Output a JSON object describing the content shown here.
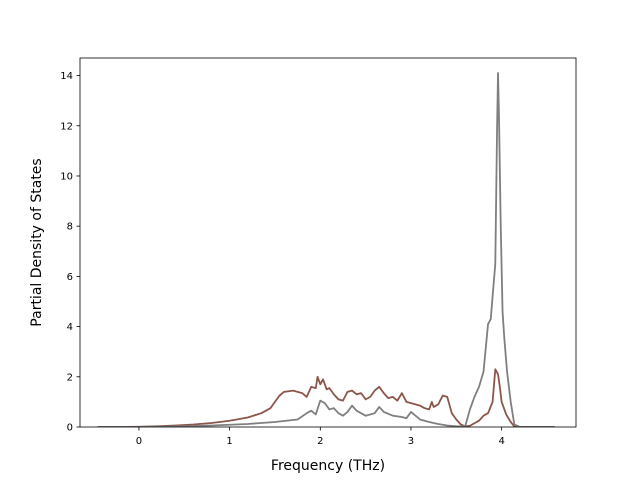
{
  "chart_data": {
    "type": "line",
    "title": "",
    "xlabel": "Frequency (THz)",
    "ylabel": "Partial Density of States",
    "xlim": [
      -0.65,
      4.82
    ],
    "ylim": [
      0,
      14.7
    ],
    "xticks": [
      0,
      1,
      2,
      3,
      4
    ],
    "yticks": [
      0,
      2,
      4,
      6,
      8,
      10,
      12,
      14
    ],
    "grid": false,
    "legend": "none",
    "series": [
      {
        "color": "#8c564b",
        "x": [
          -0.45,
          -0.2,
          0.0,
          0.2,
          0.4,
          0.6,
          0.8,
          1.0,
          1.2,
          1.35,
          1.45,
          1.5,
          1.55,
          1.6,
          1.7,
          1.8,
          1.85,
          1.9,
          1.95,
          1.97,
          2.0,
          2.03,
          2.07,
          2.1,
          2.15,
          2.2,
          2.25,
          2.3,
          2.35,
          2.4,
          2.45,
          2.5,
          2.55,
          2.6,
          2.65,
          2.7,
          2.75,
          2.8,
          2.85,
          2.9,
          2.95,
          3.0,
          3.05,
          3.1,
          3.15,
          3.2,
          3.23,
          3.25,
          3.3,
          3.35,
          3.4,
          3.45,
          3.5,
          3.55,
          3.6,
          3.65,
          3.7,
          3.75,
          3.8,
          3.85,
          3.9,
          3.93,
          3.96,
          3.98,
          4.0,
          4.02,
          4.05,
          4.1,
          4.14,
          4.2,
          4.4,
          4.58
        ],
        "y": [
          0,
          0,
          0.01,
          0.03,
          0.06,
          0.1,
          0.16,
          0.25,
          0.38,
          0.55,
          0.75,
          1.0,
          1.25,
          1.4,
          1.45,
          1.35,
          1.2,
          1.6,
          1.55,
          2.0,
          1.7,
          1.9,
          1.5,
          1.55,
          1.3,
          1.1,
          1.05,
          1.4,
          1.45,
          1.3,
          1.35,
          1.1,
          1.2,
          1.45,
          1.6,
          1.35,
          1.15,
          1.2,
          1.05,
          1.35,
          1.0,
          0.95,
          0.9,
          0.85,
          0.75,
          0.7,
          1.0,
          0.8,
          0.9,
          1.25,
          1.2,
          0.55,
          0.3,
          0.1,
          0.02,
          0.05,
          0.15,
          0.25,
          0.45,
          0.55,
          1.0,
          2.3,
          2.1,
          1.6,
          1.0,
          0.8,
          0.5,
          0.2,
          0.02,
          0,
          0,
          0
        ]
      },
      {
        "color": "#7f7f7f",
        "x": [
          -0.45,
          0.0,
          0.4,
          0.8,
          1.2,
          1.5,
          1.75,
          1.85,
          1.9,
          1.95,
          2.0,
          2.05,
          2.1,
          2.15,
          2.2,
          2.25,
          2.3,
          2.35,
          2.4,
          2.5,
          2.6,
          2.65,
          2.7,
          2.8,
          2.9,
          2.95,
          3.0,
          3.05,
          3.1,
          3.2,
          3.3,
          3.4,
          3.5,
          3.55,
          3.6,
          3.65,
          3.7,
          3.75,
          3.8,
          3.85,
          3.88,
          3.9,
          3.93,
          3.95,
          3.96,
          3.97,
          3.99,
          4.01,
          4.03,
          4.06,
          4.1,
          4.14,
          4.2,
          4.4,
          4.58
        ],
        "y": [
          0,
          0,
          0.02,
          0.06,
          0.12,
          0.2,
          0.3,
          0.55,
          0.65,
          0.5,
          1.05,
          0.95,
          0.7,
          0.75,
          0.55,
          0.45,
          0.6,
          0.85,
          0.65,
          0.45,
          0.55,
          0.8,
          0.6,
          0.45,
          0.4,
          0.35,
          0.6,
          0.45,
          0.3,
          0.2,
          0.12,
          0.06,
          0.03,
          0.02,
          0.05,
          0.7,
          1.2,
          1.6,
          2.2,
          4.1,
          4.3,
          5.2,
          6.5,
          12.0,
          14.1,
          12.5,
          8.0,
          4.6,
          3.5,
          2.2,
          1.0,
          0.1,
          0,
          0,
          0
        ]
      }
    ]
  }
}
